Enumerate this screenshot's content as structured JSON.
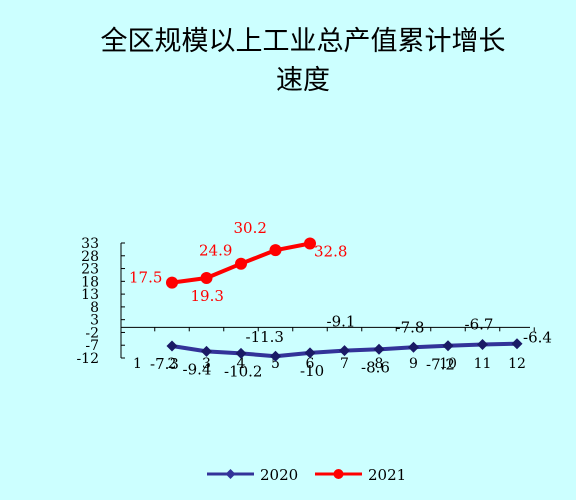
{
  "chart_data": {
    "type": "line",
    "title_lines": [
      "全区规模以上工业总产值累计增长",
      "速度"
    ],
    "categories": [
      "1",
      "2",
      "3",
      "4",
      "5",
      "6",
      "7",
      "8",
      "9",
      "10",
      "11",
      "12"
    ],
    "y_ticks": [
      "33",
      "28",
      "23",
      "18",
      "13",
      "8",
      "3",
      "-2",
      "-7",
      "-12"
    ],
    "ylim": [
      -12,
      33
    ],
    "grid": false,
    "legend_position": "bottom",
    "series": [
      {
        "name": "2020",
        "color": "#333399",
        "marker": "diamond",
        "x": [
          "2",
          "3",
          "4",
          "5",
          "6",
          "7",
          "8",
          "9",
          "10",
          "11",
          "12"
        ],
        "values": [
          -7.3,
          -9.4,
          -10.2,
          -11.3,
          -10,
          -9.1,
          -8.6,
          -7.8,
          -7.2,
          -6.7,
          -6.4
        ],
        "labels": [
          "-7.3",
          "-9.4",
          "-10.2",
          "-11.3",
          "-10",
          "-9.1",
          "-8.6",
          "-7.8",
          "-7.2",
          "-6.7",
          "-6.4"
        ]
      },
      {
        "name": "2021",
        "color": "#ff0000",
        "marker": "circle",
        "x": [
          "2",
          "3",
          "4",
          "5",
          "6"
        ],
        "values": [
          17.5,
          19.3,
          24.9,
          30.2,
          32.8
        ],
        "labels": [
          "17.5",
          "19.3",
          "24.9",
          "30.2",
          "32.8"
        ]
      }
    ]
  }
}
